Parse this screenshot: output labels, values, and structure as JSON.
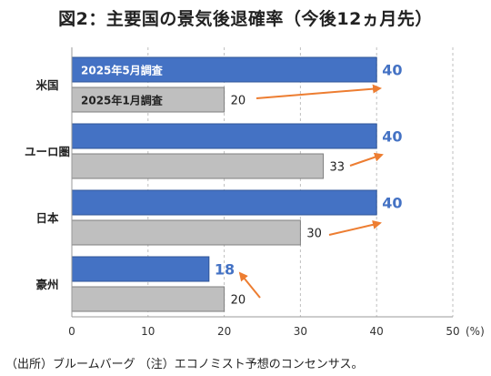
{
  "title": "図2：主要国の景気後退確率（今後12ヵ月先）",
  "footnote": "（出所）ブルームバーグ （注）エコノミスト予想のコンセンサス。",
  "chart_data": {
    "type": "bar",
    "orientation": "horizontal",
    "categories": [
      "米国",
      "ユーロ圏",
      "日本",
      "豪州"
    ],
    "series": [
      {
        "name": "2025年5月調査",
        "values": [
          40,
          40,
          40,
          18
        ],
        "color": "#4472C4",
        "label_color": "#4472C4"
      },
      {
        "name": "2025年1月調査",
        "values": [
          20,
          33,
          30,
          20
        ],
        "color": "#BFBFBF",
        "label_color": "#222222"
      }
    ],
    "xlim": [
      0,
      50
    ],
    "xticks": [
      0,
      10,
      20,
      30,
      40,
      50
    ],
    "x_unit": "(%)",
    "grid": "vertical-dashed",
    "legend": "inline-in-first-bars",
    "annotations": "orange arrows from January values to May values",
    "arrow_color": "#ED7D31"
  }
}
